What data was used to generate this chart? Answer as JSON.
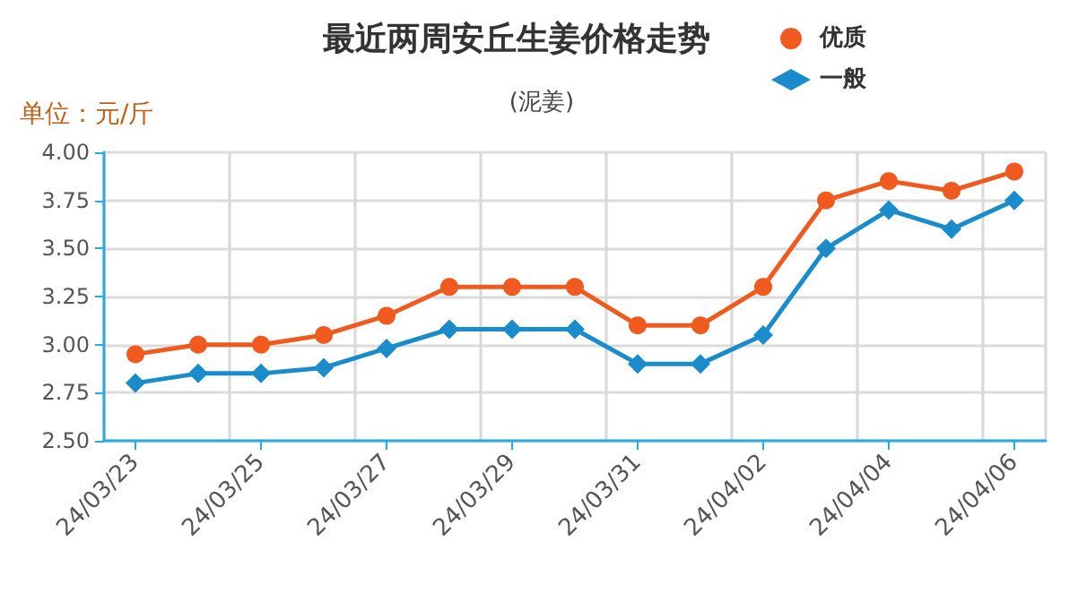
{
  "chart_data": {
    "type": "line",
    "title": "最近两周安丘生姜价格走势",
    "subtitle": "(泥姜)",
    "ylabel": "单位：元/斤",
    "categories": [
      "24/03/23",
      null,
      "24/03/25",
      null,
      "24/03/27",
      null,
      "24/03/29",
      null,
      "24/03/31",
      null,
      "24/04/02",
      null,
      "24/04/04",
      null,
      "24/04/06"
    ],
    "series": [
      {
        "name": "优质",
        "color": "#f05a1e",
        "marker": "circle",
        "values": [
          2.95,
          3.0,
          3.0,
          3.05,
          3.15,
          3.3,
          3.3,
          3.3,
          3.1,
          3.1,
          3.3,
          3.75,
          3.85,
          3.8,
          3.9
        ]
      },
      {
        "name": "一般",
        "color": "#1a8ccc",
        "marker": "diamond",
        "values": [
          2.8,
          2.85,
          2.85,
          2.88,
          2.98,
          3.08,
          3.08,
          3.08,
          2.9,
          2.9,
          3.05,
          3.5,
          3.7,
          3.6,
          3.75
        ]
      }
    ],
    "ylim": [
      2.5,
      4.0
    ],
    "yticks": [
      {
        "value": 2.5,
        "label": "2.50"
      },
      {
        "value": 2.75,
        "label": "2.75"
      },
      {
        "value": 3.0,
        "label": "3.00"
      },
      {
        "value": 3.25,
        "label": "3.25"
      },
      {
        "value": 3.5,
        "label": "3.50"
      },
      {
        "value": 3.75,
        "label": "3.75"
      },
      {
        "value": 4.0,
        "label": "4.00"
      }
    ],
    "grid": true,
    "legend": "top right",
    "line_style": "solid"
  }
}
